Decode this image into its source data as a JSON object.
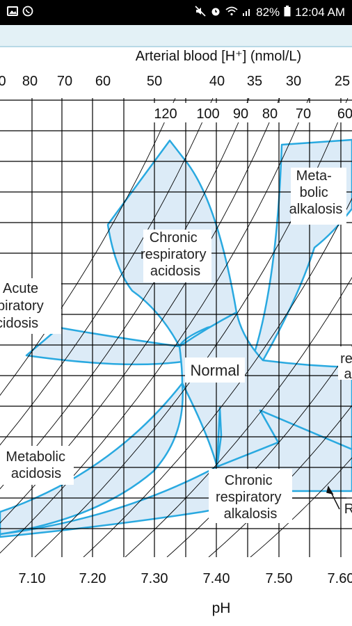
{
  "status_bar": {
    "left_icons": [
      "image-icon",
      "whatsapp-icon"
    ],
    "right_icons": [
      "mute-icon",
      "alarm-icon",
      "wifi-icon",
      "signal-icon",
      "battery-icon"
    ],
    "battery": "82%",
    "time": "12:04 AM"
  },
  "diagram": {
    "top_axis_title": "Arterial blood [H⁺] (nmol/L)",
    "top_ticks": [
      "0",
      "80",
      "70",
      "60",
      "50",
      "40",
      "35",
      "30",
      "25"
    ],
    "pco2_labels": [
      "120",
      "100",
      "90",
      "80",
      "70",
      "60"
    ],
    "bottom_ticks": [
      "7.10",
      "7.20",
      "7.30",
      "7.40",
      "7.50",
      "7.60"
    ],
    "bottom_axis_title": "pH",
    "regions": {
      "chronic_respiratory_acidosis": [
        "Chronic",
        "respiratory",
        "acidosis"
      ],
      "metabolic_alkalosis": [
        "Meta-",
        "bolic",
        "alkalosis"
      ],
      "acute_respiratory_acidosis": [
        "Acute",
        "piratory",
        "cidosis"
      ],
      "normal": "Normal",
      "metabolic_acidosis": [
        "Metabolic",
        "acidosis"
      ],
      "chronic_respiratory_alkalosis": [
        "Chronic",
        "respiratory",
        "alkalosis"
      ],
      "right_fragment_1": "re",
      "right_fragment_2": "a",
      "right_fragment_3": "R"
    },
    "colors": {
      "region_fill": "#dcebf7",
      "region_stroke": "#29a9e0",
      "grid": "#000000"
    }
  }
}
